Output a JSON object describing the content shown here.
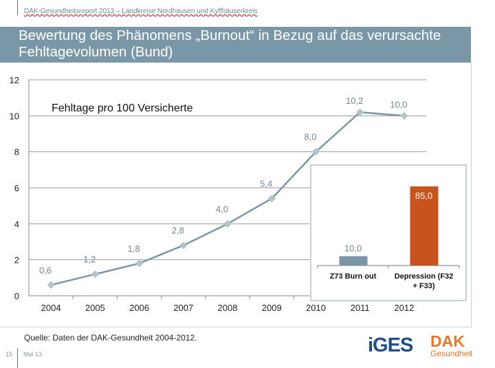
{
  "header": {
    "report": "DAK-Gesundheitsreport 2013 – Landkreise Nordhausen und Kyffhäuserkreis",
    "title": "Bewertung des Phänomens „Burnout“ in Bezug auf das verursachte Fehltagevolumen (Bund)"
  },
  "footer": {
    "source": "Quelle: Daten der DAK-Gesundheit 2004-2012.",
    "page": "15",
    "date": "Mai 13",
    "logo_iges": "iGES",
    "logo_dak": "DAK",
    "logo_dak_sub": "Gesundheit"
  },
  "colors": {
    "line": "#7a97a8",
    "bar_burnout": "#7a97a8",
    "bar_depression": "#c9531c",
    "accent": "#e2401c"
  },
  "chart_data": [
    {
      "type": "line",
      "title": "Fehltage pro 100 Versicherte",
      "categories": [
        "2004",
        "2005",
        "2006",
        "2007",
        "2008",
        "2009",
        "2010",
        "2011",
        "2012"
      ],
      "values": [
        0.6,
        1.2,
        1.8,
        2.8,
        4.0,
        5.4,
        8.0,
        10.2,
        10.0
      ],
      "data_labels": [
        "0,6",
        "1,2",
        "1,8",
        "2,8",
        "4,0",
        "5,4",
        "8,0",
        "10,2",
        "10,0"
      ],
      "ylim": [
        0,
        12
      ],
      "yticks": [
        "0",
        "2",
        "4",
        "6",
        "8",
        "10",
        "12"
      ],
      "grid": true
    },
    {
      "type": "bar",
      "categories": [
        "Z73 Burn out",
        "Depression (F32 + F33)"
      ],
      "values": [
        10.0,
        85.0
      ],
      "data_labels": [
        "10,0",
        "85,0"
      ]
    }
  ]
}
